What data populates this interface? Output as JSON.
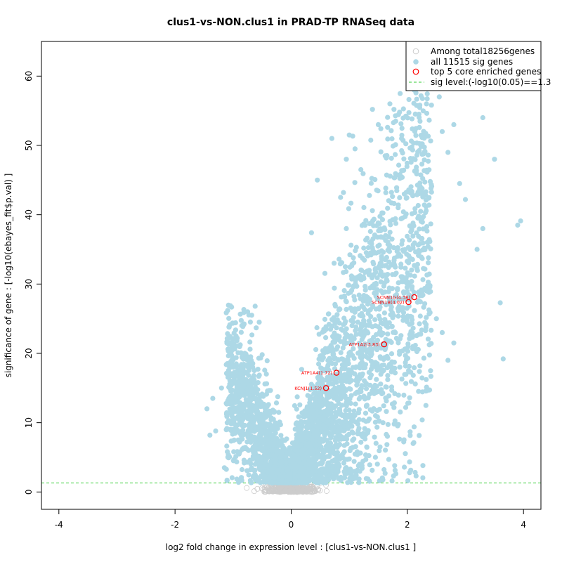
{
  "chart_data": {
    "type": "scatter",
    "title": "clus1-vs-NON.clus1 in PRAD-TP RNASeq data",
    "xlabel": "log2 fold change in expression level : [clus1-vs-NON.clus1 ]",
    "ylabel": "significance of gene : [-log10(ebayes_fit$p.val) ]",
    "xlim": [
      -4.3,
      4.3
    ],
    "ylim": [
      -2.5,
      65
    ],
    "x_ticks": [
      -4,
      -2,
      0,
      2,
      4
    ],
    "y_ticks": [
      0,
      10,
      20,
      30,
      40,
      50,
      60
    ],
    "sig_level": 1.3,
    "legend": {
      "position": "top-right",
      "entries": [
        {
          "label": "Among total18256genes",
          "style": "open-circle",
          "color": "#cccccc"
        },
        {
          "label": "all 11515 sig genes",
          "style": "filled-circle",
          "color": "#add8e6"
        },
        {
          "label": "top 5 core enriched genes",
          "style": "open-circle",
          "color": "#ff0000"
        },
        {
          "label": "sig level:(-log10(0.05)==1.3",
          "style": "dashed-line",
          "color": "#33cc33"
        }
      ]
    },
    "highlighted_genes": [
      {
        "label": "SCNN1G(4.38)",
        "x": 2.12,
        "y": 28.1
      },
      {
        "label": "SCNN1B(4.02)",
        "x": 2.02,
        "y": 27.4
      },
      {
        "label": "ATP1A2(3.83)",
        "x": 1.6,
        "y": 21.3
      },
      {
        "label": "ATP1A4(1.72)",
        "x": 0.78,
        "y": 17.2
      },
      {
        "label": "KCNJ1(1.52)",
        "x": 0.6,
        "y": 15.0
      }
    ],
    "sig_points": [
      [
        -1.45,
        12.0
      ],
      [
        -1.4,
        8.2
      ],
      [
        -1.35,
        13.5
      ],
      [
        -1.3,
        8.8
      ],
      [
        -1.2,
        15.0
      ],
      [
        -1.1,
        17.0
      ],
      [
        -1.0,
        18.0
      ],
      [
        -0.95,
        22.5
      ],
      [
        -0.85,
        24.0
      ],
      [
        -0.8,
        20.0
      ],
      [
        -0.75,
        26.0
      ],
      [
        -0.68,
        25.5
      ],
      [
        -0.62,
        26.8
      ],
      [
        -0.55,
        24.5
      ],
      [
        -0.85,
        16.0
      ],
      [
        -1.15,
        3.5
      ],
      [
        -0.9,
        1.7
      ],
      [
        0.35,
        37.4
      ],
      [
        0.45,
        45.0
      ],
      [
        0.7,
        51.0
      ],
      [
        0.85,
        42.5
      ],
      [
        0.9,
        43.2
      ],
      [
        0.95,
        48.0
      ],
      [
        0.95,
        38.0
      ],
      [
        1.0,
        51.5
      ],
      [
        1.1,
        49.5
      ],
      [
        1.4,
        55.2
      ],
      [
        1.2,
        46.5
      ],
      [
        1.5,
        53.0
      ],
      [
        1.7,
        56.0
      ],
      [
        1.8,
        53.5
      ],
      [
        2.2,
        54.5
      ],
      [
        2.55,
        57.0
      ],
      [
        2.6,
        52.0
      ],
      [
        2.8,
        53.0
      ],
      [
        2.7,
        49.0
      ],
      [
        2.9,
        44.5
      ],
      [
        3.0,
        42.2
      ],
      [
        3.3,
        54.0
      ],
      [
        3.3,
        38.0
      ],
      [
        3.2,
        35.0
      ],
      [
        3.5,
        48.0
      ],
      [
        3.9,
        38.5
      ],
      [
        3.95,
        39.1
      ],
      [
        3.6,
        27.3
      ],
      [
        3.65,
        19.2
      ],
      [
        2.8,
        21.5
      ],
      [
        2.7,
        19.0
      ],
      [
        2.5,
        25.0
      ],
      [
        2.6,
        23.0
      ],
      [
        2.1,
        7.0
      ],
      [
        2.4,
        17.5
      ],
      [
        1.3,
        6.5
      ],
      [
        1.45,
        5.0
      ]
    ]
  }
}
